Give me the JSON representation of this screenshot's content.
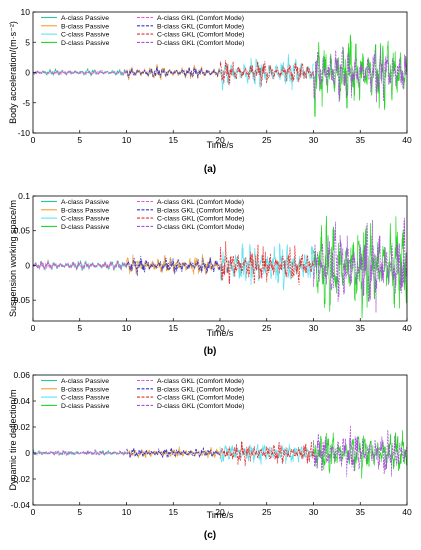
{
  "figure": {
    "panel_labels": [
      "(a)",
      "(b)",
      "(c)"
    ]
  },
  "chart_data": [
    {
      "type": "line",
      "panel": "(a)",
      "xlabel": "Time/s",
      "ylabel": "Body acceleration/(m·s⁻²)",
      "xlim": [
        0,
        40
      ],
      "ylim": [
        -10,
        10
      ],
      "xticks": [
        "0",
        "5",
        "10",
        "15",
        "20",
        "25",
        "30",
        "35",
        "40"
      ],
      "yticks": [
        "-10",
        "-5",
        "0",
        "5",
        "10"
      ],
      "legend_placement": "top-left",
      "series": [
        {
          "name": "A-class Passive",
          "color": "#2fc4a0",
          "dash": "solid",
          "x": [
            0,
            10
          ],
          "amplitude": 0.5
        },
        {
          "name": "B-class Passive",
          "color": "#f0a030",
          "dash": "solid",
          "x": [
            10,
            20
          ],
          "amplitude": 1.1
        },
        {
          "name": "C-class Passive",
          "color": "#5fe3ee",
          "dash": "solid",
          "x": [
            20,
            30
          ],
          "amplitude": 2.4
        },
        {
          "name": "D-class Passive",
          "color": "#22d622",
          "dash": "solid",
          "x": [
            30,
            40
          ],
          "amplitude": 6.0
        },
        {
          "name": "A-class GKL (Comfort Mode)",
          "color": "#ee4bd6",
          "dash": "dash",
          "x": [
            0,
            10
          ],
          "amplitude": 0.35
        },
        {
          "name": "B-class GKL (Comfort Mode)",
          "color": "#3535c8",
          "dash": "dash",
          "x": [
            10,
            20
          ],
          "amplitude": 0.8
        },
        {
          "name": "C-class GKL (Comfort Mode)",
          "color": "#e23232",
          "dash": "dash",
          "x": [
            20,
            30
          ],
          "amplitude": 1.8
        },
        {
          "name": "D-class GKL (Comfort Mode)",
          "color": "#a750d8",
          "dash": "dash",
          "x": [
            30,
            40
          ],
          "amplitude": 4.3
        }
      ]
    },
    {
      "type": "line",
      "panel": "(b)",
      "xlabel": "Time/s",
      "ylabel": "Suspension working space/m",
      "xlim": [
        0,
        40
      ],
      "ylim": [
        -0.08,
        0.1
      ],
      "xticks": [
        "0",
        "5",
        "10",
        "15",
        "20",
        "25",
        "30",
        "35",
        "40"
      ],
      "yticks": [
        "-0.05",
        "0",
        "0.05",
        "0.1"
      ],
      "legend_placement": "top-left",
      "series": [
        {
          "name": "A-class Passive",
          "color": "#2fc4a0",
          "dash": "solid",
          "x": [
            0,
            10
          ],
          "amplitude": 0.007
        },
        {
          "name": "B-class Passive",
          "color": "#f0a030",
          "dash": "solid",
          "x": [
            10,
            20
          ],
          "amplitude": 0.013
        },
        {
          "name": "C-class Passive",
          "color": "#5fe3ee",
          "dash": "solid",
          "x": [
            20,
            30
          ],
          "amplitude": 0.03
        },
        {
          "name": "D-class Passive",
          "color": "#22d622",
          "dash": "solid",
          "x": [
            30,
            40
          ],
          "amplitude": 0.065
        },
        {
          "name": "A-class GKL (Comfort Mode)",
          "color": "#ee4bd6",
          "dash": "dash",
          "x": [
            0,
            10
          ],
          "amplitude": 0.006
        },
        {
          "name": "B-class GKL (Comfort Mode)",
          "color": "#3535c8",
          "dash": "dash",
          "x": [
            10,
            20
          ],
          "amplitude": 0.011
        },
        {
          "name": "C-class GKL (Comfort Mode)",
          "color": "#e23232",
          "dash": "dash",
          "x": [
            20,
            30
          ],
          "amplitude": 0.026
        },
        {
          "name": "D-class GKL (Comfort Mode)",
          "color": "#a750d8",
          "dash": "dash",
          "x": [
            30,
            40
          ],
          "amplitude": 0.055
        }
      ]
    },
    {
      "type": "line",
      "panel": "(c)",
      "xlabel": "Time/s",
      "ylabel": "Dynamic tire deflection/m",
      "xlim": [
        0,
        40
      ],
      "ylim": [
        -0.04,
        0.06
      ],
      "xticks": [
        "0",
        "5",
        "10",
        "15",
        "20",
        "25",
        "30",
        "35",
        "40"
      ],
      "yticks": [
        "-0.04",
        "-0.02",
        "0",
        "0.02",
        "0.04",
        "0.06"
      ],
      "legend_placement": "top-left",
      "series": [
        {
          "name": "A-class Passive",
          "color": "#2fc4a0",
          "dash": "solid",
          "x": [
            0,
            10
          ],
          "amplitude": 0.0018
        },
        {
          "name": "B-class Passive",
          "color": "#f0a030",
          "dash": "solid",
          "x": [
            10,
            20
          ],
          "amplitude": 0.0035
        },
        {
          "name": "C-class Passive",
          "color": "#5fe3ee",
          "dash": "solid",
          "x": [
            20,
            30
          ],
          "amplitude": 0.008
        },
        {
          "name": "D-class Passive",
          "color": "#22d622",
          "dash": "solid",
          "x": [
            30,
            40
          ],
          "amplitude": 0.016
        },
        {
          "name": "A-class GKL (Comfort Mode)",
          "color": "#ee4bd6",
          "dash": "dash",
          "x": [
            0,
            10
          ],
          "amplitude": 0.0018
        },
        {
          "name": "B-class GKL (Comfort Mode)",
          "color": "#3535c8",
          "dash": "dash",
          "x": [
            10,
            20
          ],
          "amplitude": 0.0035
        },
        {
          "name": "C-class GKL (Comfort Mode)",
          "color": "#e23232",
          "dash": "dash",
          "x": [
            20,
            30
          ],
          "amplitude": 0.008
        },
        {
          "name": "D-class GKL (Comfort Mode)",
          "color": "#a750d8",
          "dash": "dash",
          "x": [
            30,
            40
          ],
          "amplitude": 0.016
        }
      ]
    }
  ]
}
